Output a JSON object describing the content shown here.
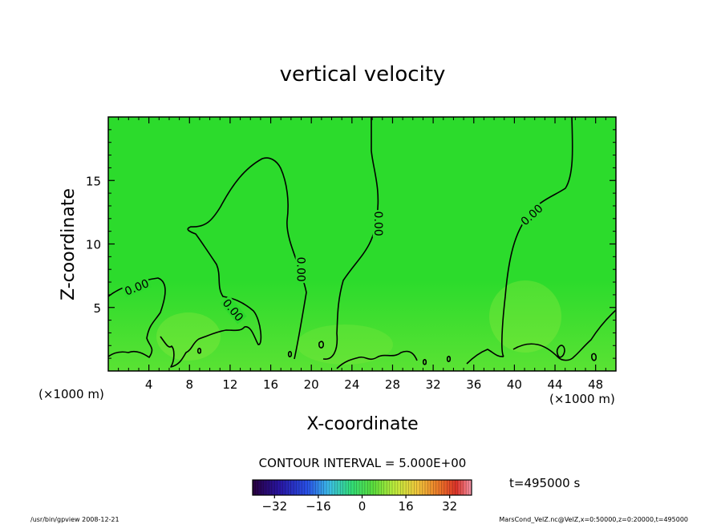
{
  "chart_data": {
    "type": "heatmap",
    "title": "vertical velocity",
    "xlabel": "X-coordinate",
    "ylabel": "Z-coordinate",
    "x_unit_left": "(×1000 m)",
    "x_unit_right": "(×1000 m)",
    "xlim": [
      0,
      50
    ],
    "ylim": [
      0,
      20
    ],
    "x_ticks": [
      "4",
      "8",
      "12",
      "16",
      "20",
      "24",
      "28",
      "32",
      "36",
      "40",
      "44",
      "48"
    ],
    "x_tick_values": [
      4,
      8,
      12,
      16,
      20,
      24,
      28,
      32,
      36,
      40,
      44,
      48
    ],
    "y_ticks": [
      "5",
      "10",
      "15"
    ],
    "y_tick_values": [
      5,
      10,
      15
    ],
    "contour_interval_text": "CONTOUR INTERVAL = 5.000E+00",
    "contour_labels": [
      {
        "text": "0.00",
        "x": 2.8,
        "z": 6.6,
        "angle": -22
      },
      {
        "text": "0.00",
        "x": 12.3,
        "z": 4.8,
        "angle": 50
      },
      {
        "text": "0.00",
        "x": 19.0,
        "z": 8.0,
        "angle": 90
      },
      {
        "text": "0.00",
        "x": 26.6,
        "z": 11.6,
        "angle": 90
      },
      {
        "text": "0.00",
        "x": 41.7,
        "z": 12.3,
        "angle": -42
      }
    ],
    "time_text": "t=495000 s",
    "colorbar": {
      "range": [
        -40,
        40
      ],
      "tick_labels": [
        "−32",
        "−16",
        "0",
        "16",
        "32"
      ],
      "tick_values": [
        -32,
        -16,
        0,
        16,
        32
      ]
    },
    "footer_left": "/usr/bin/gpview   2008-12-21",
    "footer_right": "MarsCond_VelZ.nc@VelZ,x=0:50000,z=0:20000,t=495000"
  }
}
